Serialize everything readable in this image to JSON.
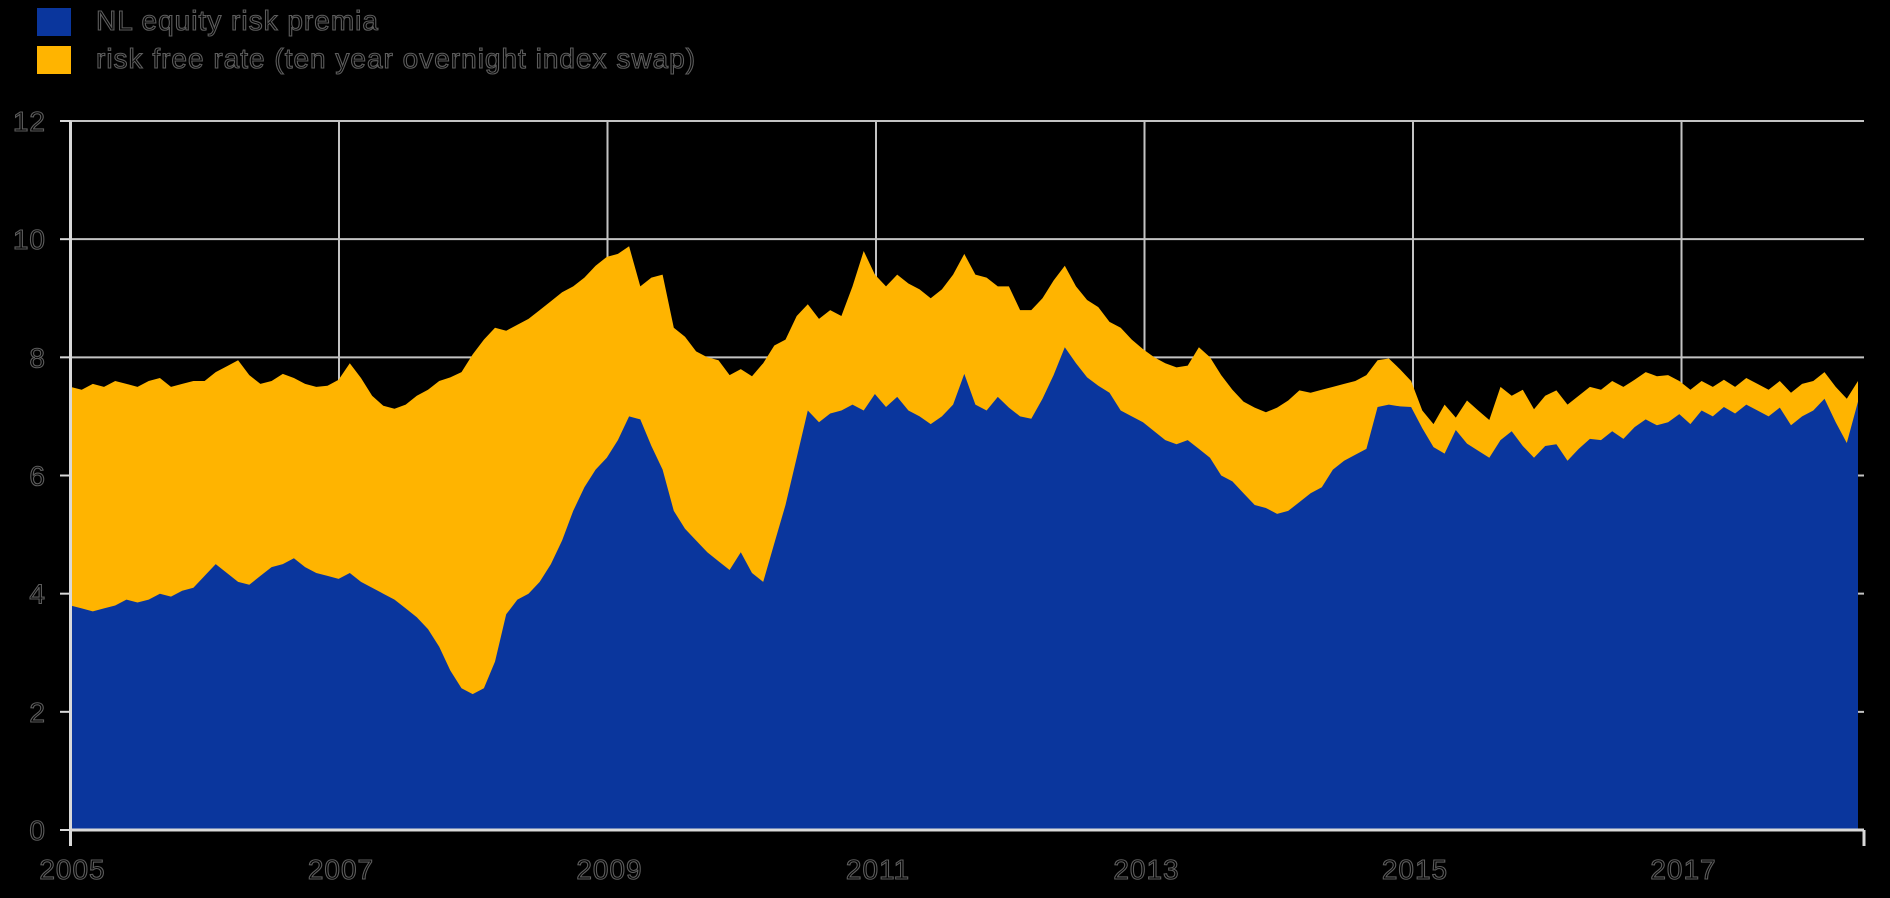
{
  "legend": {
    "items": [
      {
        "label": "NL equity risk premia",
        "color": "#0a369d"
      },
      {
        "label": "risk free rate (ten year overnight index swap)",
        "color": "#ffb400"
      }
    ]
  },
  "chart_data": {
    "type": "area",
    "stacked": true,
    "title": "",
    "xlabel": "",
    "ylabel": "",
    "frequency": "monthly",
    "x_start": "2005-01",
    "x_end": "2018-05",
    "ylim": [
      0,
      12
    ],
    "y_ticks": [
      0,
      2,
      4,
      6,
      8,
      10,
      12
    ],
    "x_ticks": [
      2005,
      2007,
      2009,
      2011,
      2013,
      2015,
      2017
    ],
    "grid": true,
    "legend_position": "top-left",
    "background": "#000000",
    "gridline_color": "#c3c3c3",
    "axis_color": "#d9d9d9",
    "text_outline_color": "#5d5d5d",
    "series": [
      {
        "name": "NL equity risk premia",
        "color": "#0a369d",
        "values": [
          3.8,
          3.75,
          3.7,
          3.75,
          3.8,
          3.9,
          3.85,
          3.9,
          4.0,
          3.95,
          4.05,
          4.1,
          4.3,
          4.5,
          4.35,
          4.2,
          4.15,
          4.3,
          4.45,
          4.5,
          4.6,
          4.45,
          4.35,
          4.3,
          4.25,
          4.35,
          4.2,
          4.1,
          4.0,
          3.9,
          3.75,
          3.6,
          3.4,
          3.1,
          2.7,
          2.4,
          2.3,
          2.4,
          2.85,
          3.65,
          3.9,
          4.0,
          4.2,
          4.5,
          4.9,
          5.4,
          5.8,
          6.1,
          6.3,
          6.6,
          7.0,
          6.95,
          6.5,
          6.1,
          5.4,
          5.1,
          4.9,
          4.7,
          4.55,
          4.4,
          4.7,
          4.35,
          4.2,
          4.85,
          5.5,
          6.3,
          7.1,
          6.9,
          7.05,
          7.1,
          7.2,
          7.1,
          7.38,
          7.16,
          7.33,
          7.1,
          7.0,
          6.87,
          7.0,
          7.2,
          7.72,
          7.2,
          7.1,
          7.33,
          7.15,
          7.0,
          6.96,
          7.3,
          7.7,
          8.17,
          7.9,
          7.66,
          7.52,
          7.4,
          7.1,
          7.0,
          6.9,
          6.75,
          6.6,
          6.53,
          6.6,
          6.45,
          6.3,
          6.0,
          5.9,
          5.7,
          5.5,
          5.45,
          5.35,
          5.4,
          5.55,
          5.7,
          5.8,
          6.1,
          6.25,
          6.35,
          6.45,
          7.16,
          7.2,
          7.17,
          7.16,
          6.8,
          6.48,
          6.37,
          6.77,
          6.54,
          6.42,
          6.3,
          6.6,
          6.75,
          6.5,
          6.3,
          6.5,
          6.53,
          6.25,
          6.45,
          6.62,
          6.6,
          6.75,
          6.62,
          6.82,
          6.95,
          6.85,
          6.9,
          7.04,
          6.87,
          7.1,
          7.0,
          7.16,
          7.05,
          7.2,
          7.1,
          7.0,
          7.15,
          6.85,
          7.0,
          7.1,
          7.3,
          6.9,
          6.55,
          7.25
        ]
      },
      {
        "name": "risk free rate (ten year overnight index swap)",
        "color": "#ffb400",
        "values": [
          3.7,
          3.7,
          3.85,
          3.75,
          3.8,
          3.65,
          3.65,
          3.7,
          3.65,
          3.55,
          3.5,
          3.5,
          3.3,
          3.25,
          3.5,
          3.75,
          3.55,
          3.25,
          3.15,
          3.22,
          3.05,
          3.1,
          3.15,
          3.22,
          3.37,
          3.55,
          3.45,
          3.25,
          3.18,
          3.23,
          3.45,
          3.75,
          4.05,
          4.5,
          4.96,
          5.35,
          5.75,
          5.9,
          5.65,
          4.8,
          4.65,
          4.65,
          4.6,
          4.45,
          4.2,
          3.8,
          3.55,
          3.45,
          3.4,
          3.15,
          2.88,
          2.25,
          2.85,
          3.3,
          3.1,
          3.25,
          3.2,
          3.3,
          3.4,
          3.3,
          3.1,
          3.33,
          3.7,
          3.35,
          2.8,
          2.4,
          1.8,
          1.75,
          1.75,
          1.6,
          2.0,
          2.7,
          2.02,
          2.04,
          2.07,
          2.15,
          2.15,
          2.13,
          2.15,
          2.2,
          2.03,
          2.2,
          2.25,
          1.87,
          2.05,
          1.8,
          1.84,
          1.7,
          1.6,
          1.38,
          1.3,
          1.31,
          1.33,
          1.2,
          1.4,
          1.3,
          1.24,
          1.25,
          1.3,
          1.3,
          1.26,
          1.72,
          1.7,
          1.7,
          1.55,
          1.55,
          1.65,
          1.62,
          1.8,
          1.87,
          1.89,
          1.7,
          1.65,
          1.4,
          1.3,
          1.25,
          1.25,
          0.79,
          0.78,
          0.63,
          0.44,
          0.3,
          0.39,
          0.83,
          0.21,
          0.73,
          0.68,
          0.64,
          0.9,
          0.6,
          0.95,
          0.82,
          0.85,
          0.91,
          0.95,
          0.9,
          0.88,
          0.85,
          0.85,
          0.88,
          0.8,
          0.8,
          0.83,
          0.8,
          0.56,
          0.58,
          0.5,
          0.5,
          0.46,
          0.45,
          0.45,
          0.45,
          0.45,
          0.45,
          0.55,
          0.55,
          0.5,
          0.45,
          0.6,
          0.75,
          0.35
        ]
      }
    ]
  }
}
